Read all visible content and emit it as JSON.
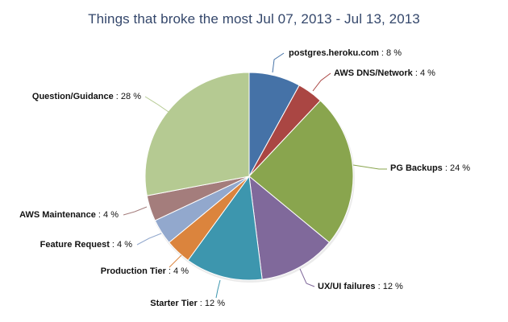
{
  "chart_data": {
    "type": "pie",
    "title": "Things that broke the most Jul 07, 2013 - Jul 13, 2013",
    "slices": [
      {
        "label": "postgres.heroku.com",
        "value": 8,
        "display": "8 %",
        "color": "#4572a7"
      },
      {
        "label": "AWS DNS/Network",
        "value": 4,
        "display": "4 %",
        "color": "#aa4643"
      },
      {
        "label": "PG Backups",
        "value": 24,
        "display": "24 %",
        "color": "#89a54e"
      },
      {
        "label": "UX/UI failures",
        "value": 12,
        "display": "12 %",
        "color": "#80699b"
      },
      {
        "label": "Starter Tier",
        "value": 12,
        "display": "12 %",
        "color": "#3d96ae"
      },
      {
        "label": "Production Tier",
        "value": 4,
        "display": "4 %",
        "color": "#db843d"
      },
      {
        "label": "Feature Request",
        "value": 4,
        "display": "4 %",
        "color": "#92a8cd"
      },
      {
        "label": "AWS Maintenance",
        "value": 4,
        "display": "4 %",
        "color": "#a47d7c"
      },
      {
        "label": "Question/Guidance",
        "value": 28,
        "display": "28 %",
        "color": "#b5ca92"
      }
    ],
    "unit_separator": " : "
  }
}
